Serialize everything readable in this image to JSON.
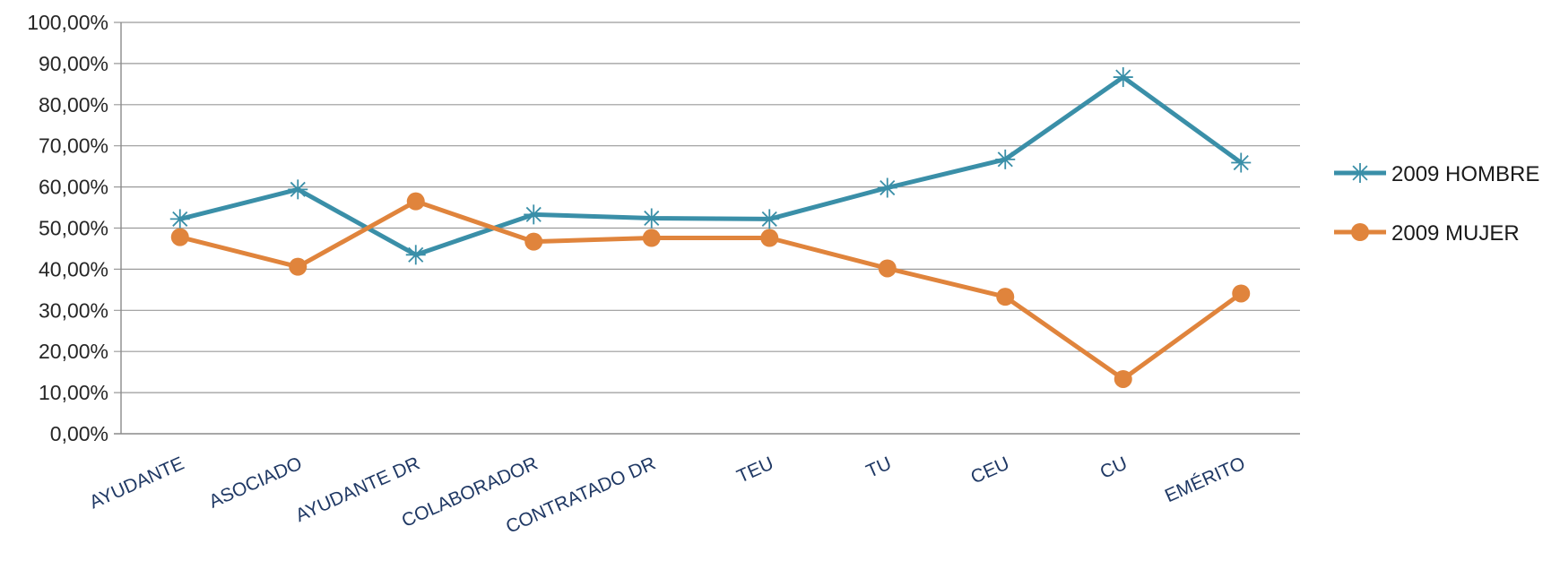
{
  "chart_data": {
    "type": "line",
    "categories": [
      "AYUDANTE",
      "ASOCIADO",
      "AYUDANTE DR",
      "COLABORADOR",
      "CONTRATADO DR",
      "TEU",
      "TU",
      "CEU",
      "CU",
      "EMÉRITO"
    ],
    "y_ticks": [
      "0,00%",
      "10,00%",
      "20,00%",
      "30,00%",
      "40,00%",
      "50,00%",
      "60,00%",
      "70,00%",
      "80,00%",
      "90,00%",
      "100,00%"
    ],
    "ylim": [
      0,
      100
    ],
    "grid": true,
    "legend_position": "right",
    "series": [
      {
        "name": "2009 HOMBRE",
        "color": "#3a8fa8",
        "marker": "asterisk",
        "values": [
          52.2,
          59.4,
          43.5,
          53.3,
          52.4,
          52.2,
          59.8,
          66.7,
          86.7,
          65.9
        ]
      },
      {
        "name": "2009 MUJER",
        "color": "#e0843c",
        "marker": "circle",
        "values": [
          47.8,
          40.6,
          56.5,
          46.7,
          47.6,
          47.6,
          40.2,
          33.3,
          13.3,
          34.1
        ]
      }
    ]
  }
}
